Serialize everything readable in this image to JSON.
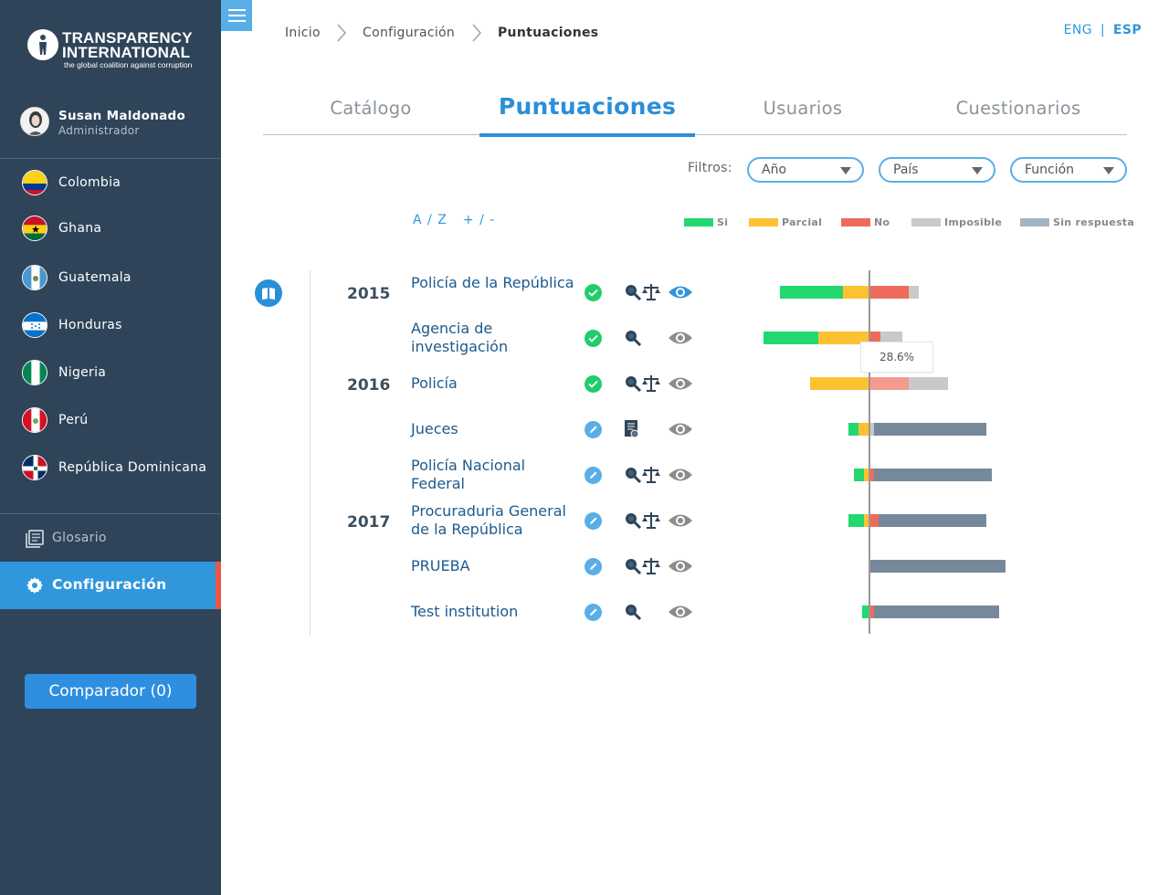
{
  "colors": {
    "si": "#23d771",
    "parcial": "#fdc132",
    "no": "#ee6b5b",
    "no_light": "#f49a8f",
    "imposible": "#c9c9c9",
    "sin_respuesta": "#76899a",
    "sidebar": "#2f4459",
    "accent": "#3097dc"
  },
  "logo": {
    "line1": "TRANSPARENCY",
    "line2": "INTERNATIONAL",
    "tagline": "the global coalition against corruption"
  },
  "user": {
    "name": "Susan Maldonado",
    "role": "Administrador"
  },
  "countries": [
    {
      "name": "Colombia"
    },
    {
      "name": "Ghana"
    },
    {
      "name": "Guatemala"
    },
    {
      "name": "Honduras"
    },
    {
      "name": "Nigeria"
    },
    {
      "name": "Perú"
    },
    {
      "name": "República Dominicana"
    }
  ],
  "nav": {
    "glosario": "Glosario",
    "configuracion": "Configuración"
  },
  "comparador": "Comparador (0)",
  "breadcrumb": [
    "Inicio",
    "Configuración",
    "Puntuaciones"
  ],
  "lang": {
    "eng": "ENG",
    "sep": "|",
    "esp": "ESP"
  },
  "tabs": [
    {
      "label": "Catálogo"
    },
    {
      "label": "Puntuaciones"
    },
    {
      "label": "Usuarios"
    },
    {
      "label": "Cuestionarios"
    }
  ],
  "filters": {
    "label": "Filtros:",
    "year": "Año",
    "country": "País",
    "function": "Función"
  },
  "sort": {
    "alpha": "A / Z",
    "score": "+ / -"
  },
  "legend": [
    {
      "label": "Si"
    },
    {
      "label": "Parcial"
    },
    {
      "label": "No"
    },
    {
      "label": "Imposible"
    },
    {
      "label": "Sin respuesta"
    }
  ],
  "years": [
    "2015",
    "2016",
    "2017"
  ],
  "rows": [
    {
      "name": "Policía de la República",
      "status": "ok",
      "tools": "search-scale",
      "eye_active": true,
      "segments": {
        "si": 0.232,
        "parcial": 0.092,
        "no": 0.146,
        "imposible": 0.036,
        "sin": 0
      }
    },
    {
      "name": "Agencia de investigación",
      "status": "ok",
      "tools": "search",
      "eye_active": false,
      "segments": {
        "si": 0.199,
        "parcial": 0.184,
        "no": 0.044,
        "imposible": 0.081,
        "sin": 0
      }
    },
    {
      "name": "Policía",
      "status": "ok",
      "tools": "search-scale",
      "eye_active": false,
      "segments": {
        "si": 0,
        "parcial": 0.215,
        "no": 0.146,
        "imposible": 0.143,
        "sin": 0
      }
    },
    {
      "name": "Jueces",
      "status": "edit",
      "tools": "doc",
      "eye_active": false,
      "segments": {
        "si": 0.036,
        "parcial": 0.036,
        "no": 0,
        "imposible": 0.02,
        "sin": 0.409
      }
    },
    {
      "name": "Policía Nacional Federal",
      "status": "edit",
      "tools": "search-scale",
      "eye_active": false,
      "segments": {
        "si": 0.036,
        "parcial": 0.018,
        "no": 0.02,
        "imposible": 0,
        "sin": 0.43
      }
    },
    {
      "name": "Procuraduria General de la República",
      "status": "edit",
      "tools": "search-scale",
      "eye_active": false,
      "segments": {
        "si": 0.054,
        "parcial": 0.018,
        "no": 0.036,
        "imposible": 0,
        "sin": 0.394
      }
    },
    {
      "name": "PRUEBA",
      "status": "edit",
      "tools": "search-scale",
      "eye_active": false,
      "segments": {
        "si": 0,
        "parcial": 0,
        "no": 0,
        "imposible": 0,
        "sin": 0.501
      }
    },
    {
      "name": "Test institution",
      "status": "edit",
      "tools": "search",
      "eye_active": false,
      "segments": {
        "si": 0.023,
        "parcial": 0,
        "no": 0.02,
        "imposible": 0,
        "sin": 0.458
      }
    }
  ],
  "tooltip": "28.6%"
}
